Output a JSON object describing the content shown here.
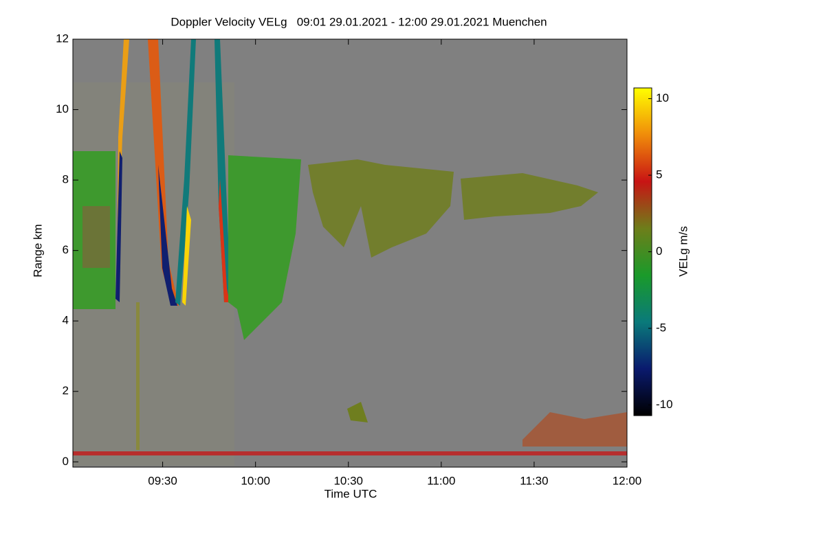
{
  "chart_data": {
    "type": "heatmap",
    "title": "Doppler Velocity VELg   09:01 29.01.2021 - 12:00 29.01.2021 Muenchen",
    "xlabel": "Time UTC",
    "ylabel": "Range km",
    "colorbar_label": "VELg m/s",
    "xlim": [
      541,
      720
    ],
    "xticks": [
      {
        "value": 570,
        "label": "09:30"
      },
      {
        "value": 600,
        "label": "10:00"
      },
      {
        "value": 630,
        "label": "10:30"
      },
      {
        "value": 660,
        "label": "11:00"
      },
      {
        "value": 690,
        "label": "11:30"
      },
      {
        "value": 720,
        "label": "12:00"
      }
    ],
    "ylim": [
      -0.15,
      12
    ],
    "yticks": [
      0,
      2,
      4,
      6,
      8,
      10,
      12
    ],
    "clim": [
      -10.7,
      10.7
    ],
    "cticks": [
      -10,
      -5,
      0,
      5,
      10
    ],
    "colormap": [
      "#000000",
      "#0a1a6e",
      "#0a7a7a",
      "#1a9a2a",
      "#6e7e1a",
      "#c81414",
      "#f08c0a",
      "#ffff00"
    ],
    "background": "#808080"
  }
}
